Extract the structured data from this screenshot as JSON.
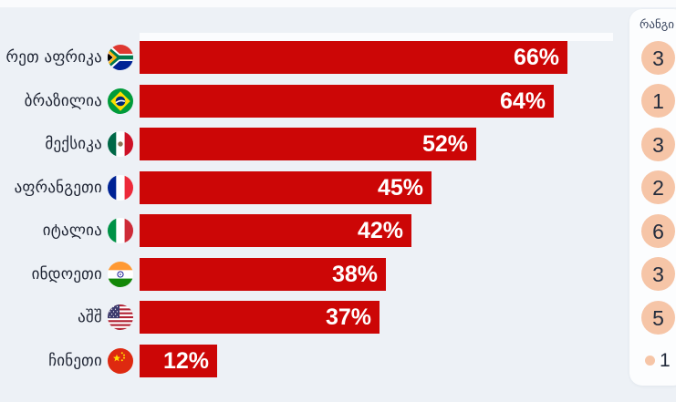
{
  "page": {
    "background_color": "#edf1f6",
    "panel_background_color": "#fcfdfe"
  },
  "rank_panel": {
    "title": "რანგი",
    "circle_color": "#f6c5a7",
    "number_color": "#232c3d",
    "items": [
      {
        "rank": "3",
        "display": "circle"
      },
      {
        "rank": "1",
        "display": "circle"
      },
      {
        "rank": "3",
        "display": "circle"
      },
      {
        "rank": "2",
        "display": "circle"
      },
      {
        "rank": "6",
        "display": "circle"
      },
      {
        "rank": "3",
        "display": "circle"
      },
      {
        "rank": "5",
        "display": "circle"
      },
      {
        "rank": "1",
        "display": "dot"
      }
    ]
  },
  "chart_data": {
    "type": "bar",
    "orientation": "horizontal",
    "value_unit": "%",
    "bar_color": "#cc0606",
    "value_label_color": "#ffffff",
    "label_color": "#1e2433",
    "xlim": [
      0,
      100
    ],
    "categories": [
      "რეთ აფრიკა",
      "ბრაზილია",
      "მექსიკა",
      "აფრანგეთი",
      "იტალია",
      "ინდოეთი",
      "აშშ",
      "ჩინეთი"
    ],
    "values": [
      66,
      64,
      52,
      45,
      42,
      38,
      37,
      12
    ],
    "rows": [
      {
        "country": "რეთ აფრიკა",
        "flag": "south-africa",
        "value": 66,
        "value_label": "66%",
        "rank": "3"
      },
      {
        "country": "ბრაზილია",
        "flag": "brazil",
        "value": 64,
        "value_label": "64%",
        "rank": "1"
      },
      {
        "country": "მექსიკა",
        "flag": "mexico",
        "value": 52,
        "value_label": "52%",
        "rank": "3"
      },
      {
        "country": "აფრანგეთი",
        "flag": "france",
        "value": 45,
        "value_label": "45%",
        "rank": "2"
      },
      {
        "country": "იტალია",
        "flag": "italy",
        "value": 42,
        "value_label": "42%",
        "rank": "6"
      },
      {
        "country": "ინდოეთი",
        "flag": "india",
        "value": 38,
        "value_label": "38%",
        "rank": "3"
      },
      {
        "country": "აშშ",
        "flag": "usa",
        "value": 37,
        "value_label": "37%",
        "rank": "5"
      },
      {
        "country": "ჩინეთი",
        "flag": "china",
        "value": 12,
        "value_label": "12%",
        "rank": "1"
      }
    ]
  }
}
